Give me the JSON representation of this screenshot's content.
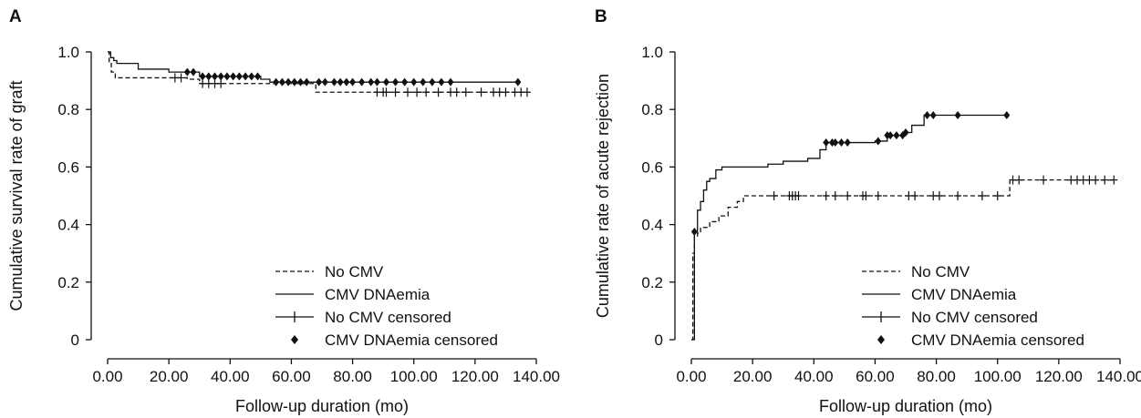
{
  "chart_data": [
    {
      "panel": "A",
      "type": "line",
      "subtype": "kaplan-meier step",
      "xlabel": "Follow-up duration (mo)",
      "ylabel": "Cumulative survival rate of graft",
      "xlim": [
        0,
        140
      ],
      "ylim": [
        0,
        1.0
      ],
      "xticks": [
        "0.00",
        "20.00",
        "40.00",
        "60.00",
        "80.00",
        "100.00",
        "120.00",
        "140.00"
      ],
      "yticks": [
        "0",
        "0.2",
        "0.4",
        "0.6",
        "0.8",
        "1.0"
      ],
      "grid": false,
      "legend_position": "bottom-right",
      "legend": [
        "No CMV",
        "CMV DNAemia",
        "No CMV censored",
        "CMV DNAemia censored"
      ],
      "series": [
        {
          "name": "No CMV",
          "style": "dashed",
          "steps": [
            [
              0,
              1.0
            ],
            [
              0.5,
              0.96
            ],
            [
              1.2,
              0.93
            ],
            [
              2.5,
              0.91
            ],
            [
              26,
              0.905
            ],
            [
              30,
              0.89
            ],
            [
              68,
              0.86
            ],
            [
              137,
              0.86
            ]
          ],
          "censored_marker": "cross",
          "censored_x": [
            22,
            24,
            31,
            33,
            35,
            37,
            88,
            90,
            91,
            94,
            98,
            101,
            104,
            108,
            112,
            114,
            117,
            122,
            126,
            128,
            130,
            133,
            135,
            137
          ]
        },
        {
          "name": "CMV DNAemia",
          "style": "solid",
          "steps": [
            [
              0,
              1.0
            ],
            [
              1,
              0.98
            ],
            [
              2,
              0.97
            ],
            [
              3,
              0.96
            ],
            [
              10,
              0.94
            ],
            [
              20,
              0.93
            ],
            [
              30,
              0.915
            ],
            [
              50,
              0.905
            ],
            [
              53,
              0.895
            ],
            [
              68,
              0.895
            ],
            [
              134,
              0.895
            ]
          ],
          "censored_marker": "diamond",
          "censored_x": [
            26,
            28,
            31,
            33,
            35,
            37,
            39,
            41,
            43,
            45,
            47,
            49,
            55,
            57,
            59,
            61,
            63,
            65,
            69,
            71,
            74,
            76,
            78,
            80,
            83,
            86,
            88,
            91,
            94,
            97,
            100,
            103,
            106,
            109,
            112,
            134
          ]
        }
      ]
    },
    {
      "panel": "B",
      "type": "line",
      "subtype": "kaplan-meier step",
      "xlabel": "Follow-up duration (mo)",
      "ylabel": "Cumulative rate of acute rejection",
      "xlim": [
        0,
        140
      ],
      "ylim": [
        0,
        1.0
      ],
      "xticks": [
        "0.00",
        "20.00",
        "40.00",
        "60.00",
        "80.00",
        "100.00",
        "120.00",
        "140.00"
      ],
      "yticks": [
        "0",
        "0.2",
        "0.4",
        "0.6",
        "0.8",
        "1.0"
      ],
      "grid": false,
      "legend_position": "bottom-right",
      "legend": [
        "No CMV",
        "CMV DNAemia",
        "No CMV censored",
        "CMV DNAemia censored"
      ],
      "series": [
        {
          "name": "No CMV",
          "style": "dashed",
          "steps": [
            [
              0,
              0
            ],
            [
              0.5,
              0.3
            ],
            [
              1,
              0.36
            ],
            [
              2,
              0.37
            ],
            [
              3,
              0.39
            ],
            [
              6,
              0.41
            ],
            [
              9,
              0.43
            ],
            [
              12,
              0.46
            ],
            [
              15,
              0.48
            ],
            [
              17,
              0.5
            ],
            [
              104,
              0.5
            ],
            [
              104,
              0.555
            ],
            [
              138,
              0.555
            ]
          ],
          "censored_marker": "cross",
          "censored_x": [
            27,
            32,
            33,
            34,
            35,
            44,
            47,
            51,
            56,
            57,
            61,
            71,
            73,
            79,
            81,
            87,
            95,
            100,
            105,
            107,
            115,
            124,
            126,
            128,
            130,
            132,
            135,
            138
          ]
        },
        {
          "name": "CMV DNAemia",
          "style": "solid",
          "steps": [
            [
              0,
              0
            ],
            [
              1,
              0.375
            ],
            [
              2,
              0.45
            ],
            [
              3,
              0.48
            ],
            [
              4,
              0.52
            ],
            [
              5,
              0.55
            ],
            [
              6,
              0.56
            ],
            [
              8,
              0.59
            ],
            [
              10,
              0.6
            ],
            [
              25,
              0.61
            ],
            [
              30,
              0.62
            ],
            [
              38,
              0.63
            ],
            [
              42,
              0.66
            ],
            [
              44,
              0.685
            ],
            [
              60,
              0.69
            ],
            [
              64,
              0.71
            ],
            [
              70,
              0.72
            ],
            [
              72,
              0.745
            ],
            [
              76,
              0.78
            ],
            [
              103,
              0.78
            ]
          ],
          "censored_marker": "diamond",
          "censored_x": [
            1,
            44,
            46,
            47,
            49,
            51,
            61,
            64,
            65,
            67,
            69,
            70,
            77,
            79,
            87,
            103
          ]
        }
      ]
    }
  ]
}
